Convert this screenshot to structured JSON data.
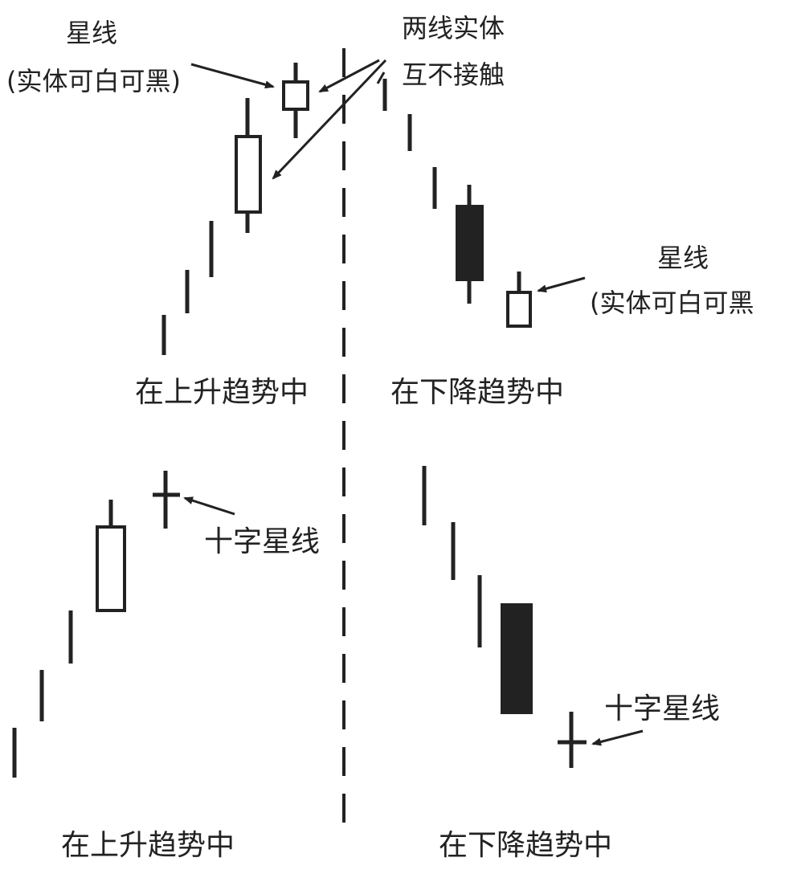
{
  "colors": {
    "ink": "#222222",
    "background": "#ffffff"
  },
  "top_left": {
    "star_label": "星线",
    "star_note": "(实体可白可黑)",
    "trend_label": "在上升趋势中"
  },
  "top_right": {
    "bodies_label_line1": "两线实体",
    "bodies_label_line2": "互不接触",
    "star_label": "星线",
    "star_note": "(实体可白可黑",
    "trend_label": "在下降趋势中"
  },
  "bottom_left": {
    "doji_label": "十字星线",
    "trend_label": "在上升趋势中"
  },
  "bottom_right": {
    "doji_label": "十字星线",
    "trend_label": "在下降趋势中"
  }
}
